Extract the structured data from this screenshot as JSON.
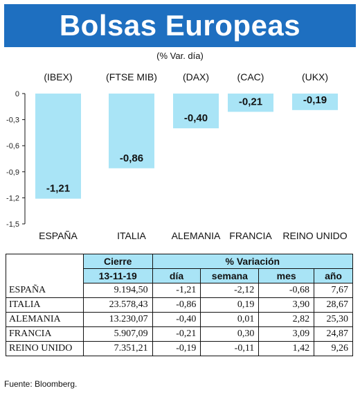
{
  "title": "Bolsas Europeas",
  "subtitle": "(% Var. día)",
  "chart_data": {
    "type": "bar",
    "categories": [
      "ESPAÑA",
      "ITALIA",
      "ALEMANIA",
      "FRANCIA",
      "REINO UNIDO"
    ],
    "indices": [
      "(IBEX)",
      "(FTSE MIB)",
      "(DAX)",
      "(CAC)",
      "(UKX)"
    ],
    "values": [
      -1.21,
      -0.86,
      -0.4,
      -0.21,
      -0.19
    ],
    "value_labels": [
      "-1,21",
      "-0,86",
      "-0,40",
      "-0,21",
      "-0,19"
    ],
    "yticks": [
      0,
      -0.3,
      -0.6,
      -0.9,
      -1.2,
      -1.5
    ],
    "ytick_labels": [
      "0",
      "-0,3",
      "-0,6",
      "-0,9",
      "-1,2",
      "-1,5"
    ],
    "ylim": [
      -1.5,
      0
    ],
    "bar_color": "#a9e4f6"
  },
  "table": {
    "header_cierre": "Cierre",
    "header_variacion": "% Variación",
    "date": "13-11-19",
    "col_dia": "día",
    "col_semana": "semana",
    "col_mes": "mes",
    "col_anio": "año",
    "rows": [
      {
        "name": "ESPAÑA",
        "cierre": "9.194,50",
        "dia": "-1,21",
        "semana": "-2,12",
        "mes": "-0,68",
        "anio": "7,67"
      },
      {
        "name": "ITALIA",
        "cierre": "23.578,43",
        "dia": "-0,86",
        "semana": "0,19",
        "mes": "3,90",
        "anio": "28,67"
      },
      {
        "name": "ALEMANIA",
        "cierre": "13.230,07",
        "dia": "-0,40",
        "semana": "0,01",
        "mes": "2,82",
        "anio": "25,30"
      },
      {
        "name": "FRANCIA",
        "cierre": "5.907,09",
        "dia": "-0,21",
        "semana": "0,30",
        "mes": "3,09",
        "anio": "24,87"
      },
      {
        "name": "REINO UNIDO",
        "cierre": "7.351,21",
        "dia": "-0,19",
        "semana": "-0,11",
        "mes": "1,42",
        "anio": "9,26"
      }
    ]
  },
  "source": "Fuente: Bloomberg.",
  "colors": {
    "title_bg": "#1e6fc0",
    "accent": "#a9e4f6"
  }
}
